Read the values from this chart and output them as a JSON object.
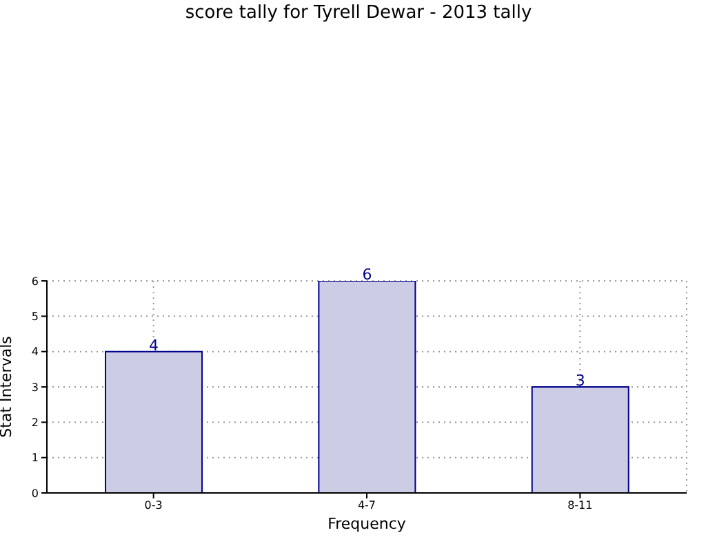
{
  "chart_data": {
    "type": "bar",
    "title": "score tally for Tyrell Dewar - 2013 tally",
    "xlabel": "Frequency",
    "ylabel": "Stat Intervals",
    "categories": [
      "0-3",
      "4-7",
      "8-11"
    ],
    "values": [
      4,
      6,
      3
    ],
    "color": "#ccccE4",
    "ylim": [
      0,
      6
    ],
    "yticks": [
      0,
      1,
      2,
      3,
      4,
      5,
      6
    ],
    "grid": true,
    "data_labels": true
  }
}
